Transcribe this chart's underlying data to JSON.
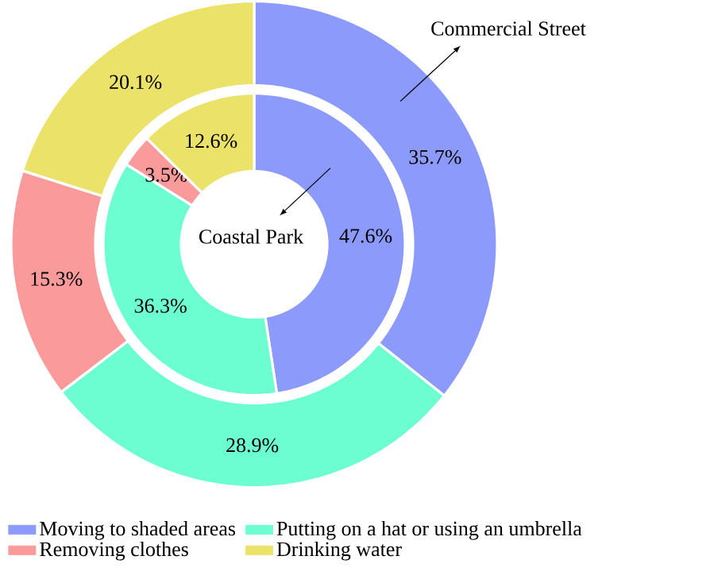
{
  "chart_data": {
    "type": "donut",
    "categories": [
      "Moving to shaded areas",
      "Putting on a hat or using an umbrella",
      "Removing clothes",
      "Drinking water"
    ],
    "colors": [
      "#8c9bfb",
      "#6cfdd0",
      "#fb9a9a",
      "#ebe26a"
    ],
    "series": [
      {
        "name": "Commercial Street",
        "values": [
          35.7,
          28.9,
          15.3,
          20.1
        ],
        "value_labels": [
          "35.7%",
          "28.9%",
          "15.3%",
          "20.1%"
        ]
      },
      {
        "name": "Coastal Park",
        "values": [
          47.6,
          36.3,
          3.5,
          12.6
        ],
        "value_labels": [
          "47.6%",
          "36.3%",
          "3.5%",
          "12.6%"
        ]
      }
    ],
    "legend": "bottom"
  }
}
